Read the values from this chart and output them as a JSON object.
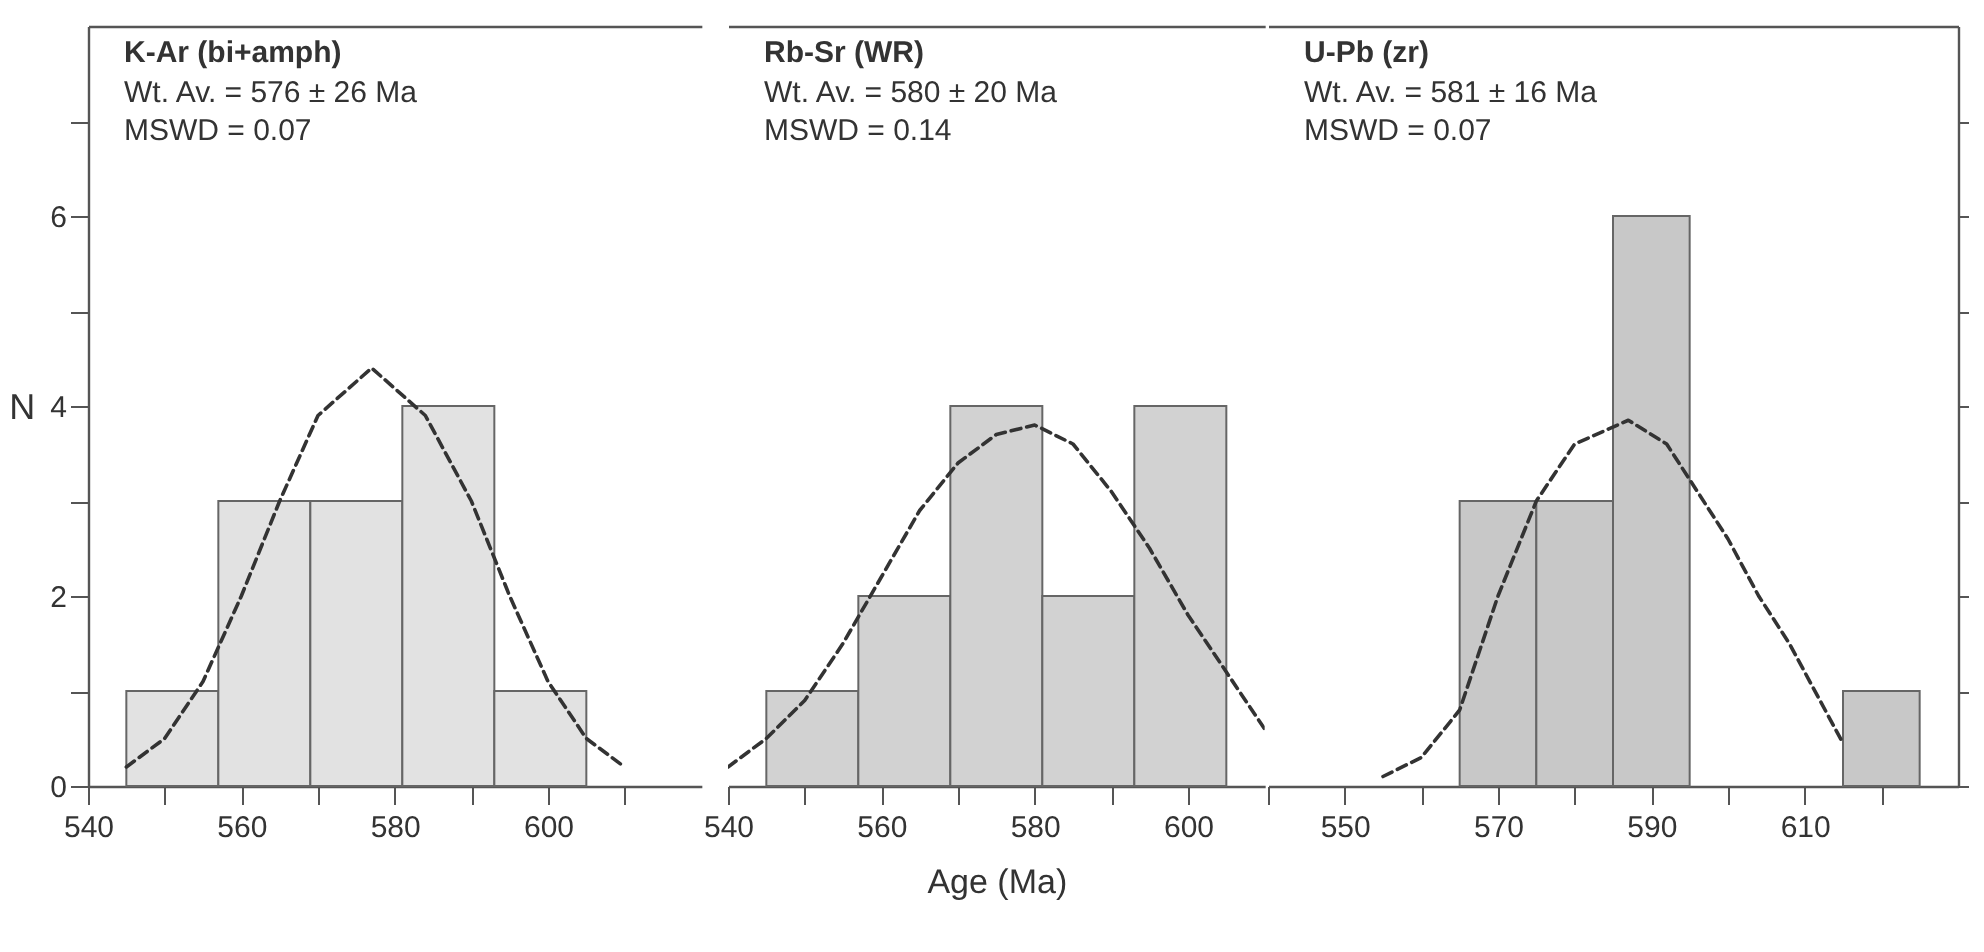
{
  "chart_data": [
    {
      "type": "histogram",
      "title": "K-Ar (bi+amph)",
      "annotations": [
        "Wt. Av. = 576 ± 26 Ma",
        "MSWD = 0.07"
      ],
      "ylabel": "N",
      "bins": [
        545,
        557,
        569,
        581,
        593,
        605
      ],
      "values": [
        1,
        3,
        3,
        4,
        1
      ],
      "color": "#e2e2e2",
      "series": [
        {
          "type": "line",
          "line_style": "dashed",
          "color": "#333333",
          "x": [
            545,
            550,
            555,
            560,
            565,
            570,
            577,
            584,
            590,
            595,
            600,
            605,
            610
          ],
          "values": [
            0.2,
            0.5,
            1.1,
            2.0,
            3.0,
            3.9,
            4.4,
            3.9,
            3.0,
            2.0,
            1.1,
            0.5,
            0.2
          ]
        }
      ],
      "xlim": [
        540,
        620
      ],
      "xticks": [
        540,
        {
          "value": 550,
          "label": null
        },
        560,
        {
          "value": 570,
          "label": null
        },
        580,
        {
          "value": 590,
          "label": null
        },
        600,
        {
          "value": 610,
          "label": null
        }
      ],
      "ylim": [
        0,
        8
      ],
      "yticks": [
        0,
        {
          "value": 1,
          "label": null
        },
        2,
        {
          "value": 3,
          "label": null
        },
        4,
        {
          "value": 5,
          "label": null
        },
        6,
        {
          "value": 7,
          "label": null
        }
      ],
      "grid": false
    },
    {
      "type": "histogram",
      "title": "Rb-Sr (WR)",
      "annotations": [
        "Wt. Av. = 580 ± 20 Ma",
        "MSWD = 0.14"
      ],
      "xlabel": "Age (Ma)",
      "bins": [
        545,
        557,
        569,
        581,
        593,
        605
      ],
      "values": [
        1,
        2,
        4,
        2,
        4
      ],
      "color": "#d2d2d2",
      "series": [
        {
          "type": "line",
          "line_style": "dashed",
          "color": "#333333",
          "x": [
            540,
            545,
            550,
            555,
            560,
            565,
            570,
            575,
            580,
            585,
            590,
            595,
            600,
            605,
            610
          ],
          "values": [
            0.2,
            0.5,
            0.9,
            1.5,
            2.2,
            2.9,
            3.4,
            3.7,
            3.8,
            3.6,
            3.1,
            2.5,
            1.8,
            1.2,
            0.6
          ]
        }
      ],
      "xlim": [
        540,
        610
      ],
      "xticks": [
        540,
        {
          "value": 550,
          "label": null
        },
        560,
        {
          "value": 570,
          "label": null
        },
        580,
        {
          "value": 590,
          "label": null
        },
        600
      ],
      "ylim": [
        0,
        8
      ],
      "tick_labels": "x",
      "grid": false
    },
    {
      "type": "histogram",
      "title": "U-Pb (zr)",
      "annotations": [
        "Wt. Av. = 581 ± 16 Ma",
        "MSWD = 0.07"
      ],
      "bins": [
        565,
        575,
        585,
        595,
        605,
        615,
        625
      ],
      "values": [
        3,
        3,
        6,
        0,
        0,
        1
      ],
      "color": "#c8c8c8",
      "series": [
        {
          "type": "line",
          "line_style": "dashed",
          "color": "#333333",
          "x": [
            555,
            560,
            565,
            570,
            575,
            580,
            587,
            592,
            596,
            600,
            604,
            608,
            612,
            615
          ],
          "values": [
            0.1,
            0.3,
            0.8,
            2.0,
            3.0,
            3.6,
            3.85,
            3.6,
            3.1,
            2.6,
            2.0,
            1.5,
            0.9,
            0.45
          ]
        }
      ],
      "xlim": [
        540,
        630
      ],
      "xticks": [
        {
          "value": 540,
          "label": null
        },
        550,
        {
          "value": 560,
          "label": null
        },
        570,
        {
          "value": 580,
          "label": null
        },
        590,
        {
          "value": 600,
          "label": null
        },
        610,
        {
          "value": 620,
          "label": null
        }
      ],
      "ylim": [
        0,
        8
      ],
      "yticks": [
        0,
        {
          "value": 1,
          "label": null
        },
        2,
        {
          "value": 3,
          "label": null
        },
        4,
        {
          "value": 5,
          "label": null
        },
        6,
        {
          "value": 7,
          "label": null
        }
      ],
      "tick_labels": "x",
      "grid": false
    }
  ]
}
